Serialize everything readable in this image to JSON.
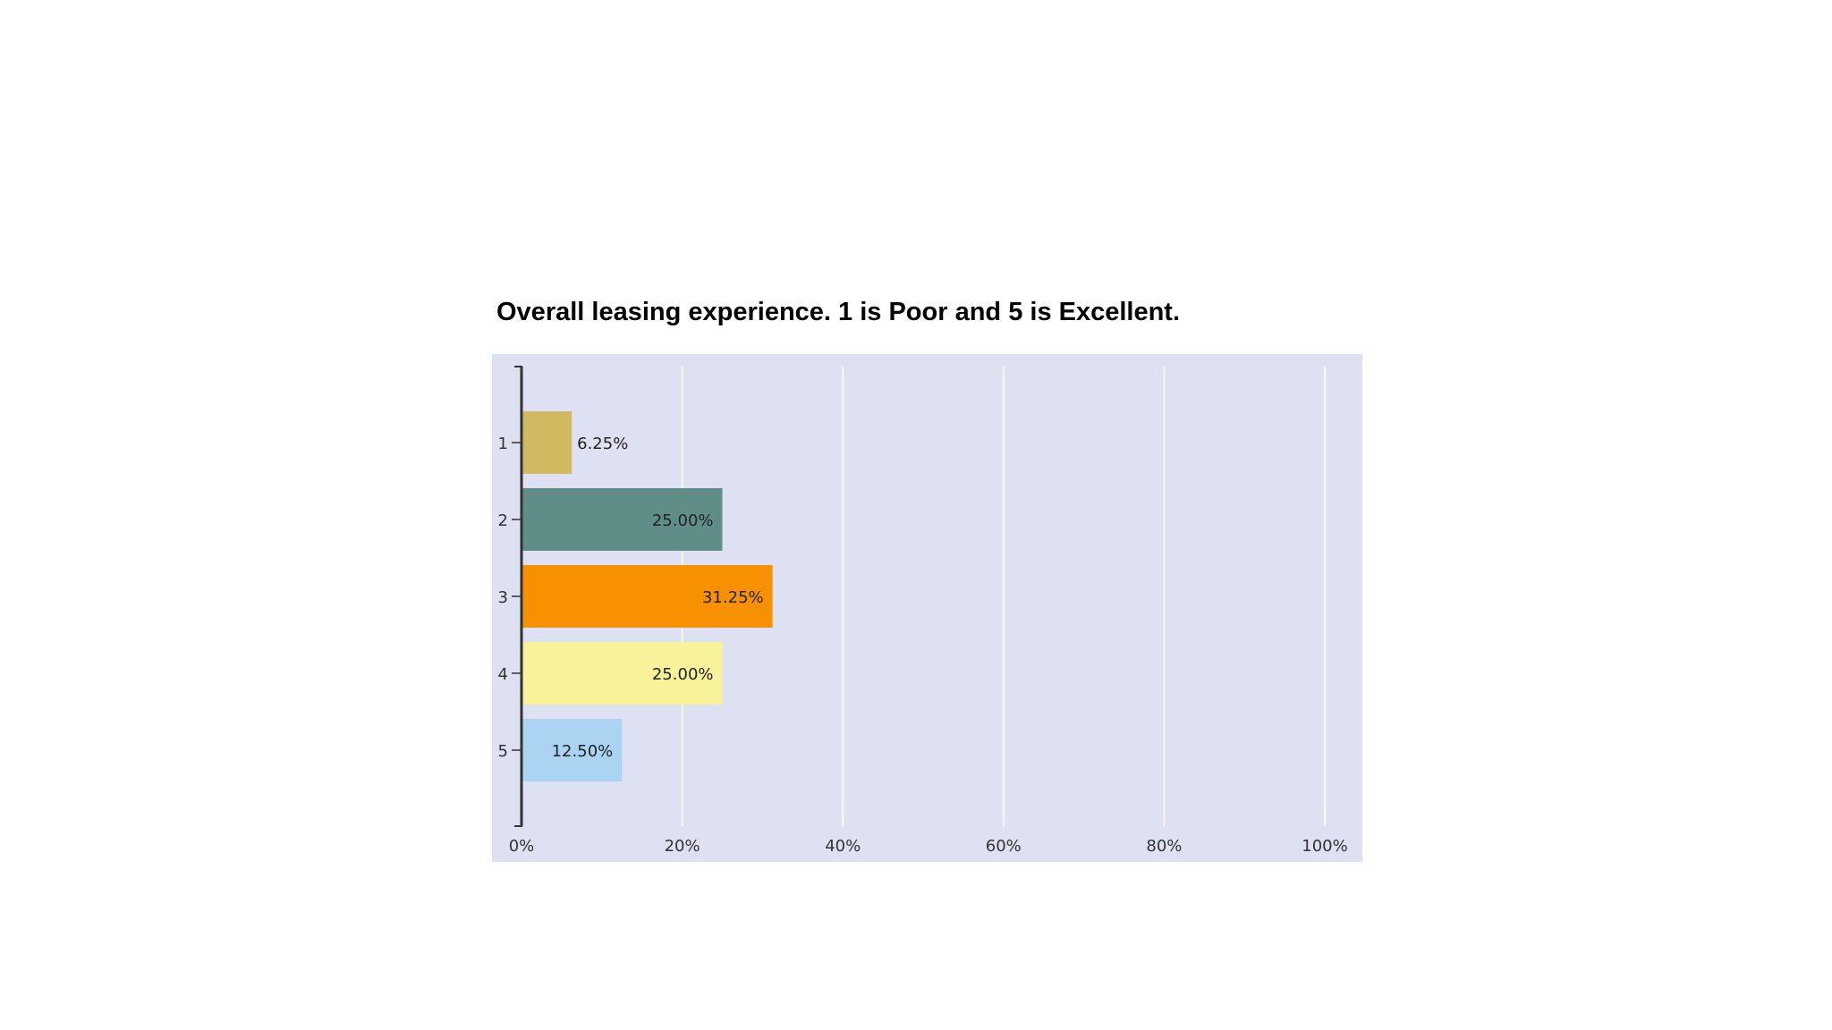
{
  "chart_data": {
    "type": "bar",
    "orientation": "horizontal",
    "title": "Overall leasing experience. 1 is Poor and 5 is Excellent.",
    "categories": [
      "1",
      "2",
      "3",
      "4",
      "5"
    ],
    "values": [
      6.25,
      25.0,
      31.25,
      25.0,
      12.5
    ],
    "value_labels": [
      "6.25%",
      "25.00%",
      "31.25%",
      "25.00%",
      "12.50%"
    ],
    "colors": [
      "#d1b962",
      "#5f8e89",
      "#f79100",
      "#f8f29a",
      "#abd4f2"
    ],
    "xlim": [
      0,
      100
    ],
    "x_ticks": [
      0,
      20,
      40,
      60,
      80,
      100
    ],
    "x_tick_labels": [
      "0%",
      "20%",
      "40%",
      "60%",
      "80%",
      "100%"
    ],
    "grid": true,
    "background_color": "#dde1f1",
    "xlabel": "",
    "ylabel": ""
  }
}
